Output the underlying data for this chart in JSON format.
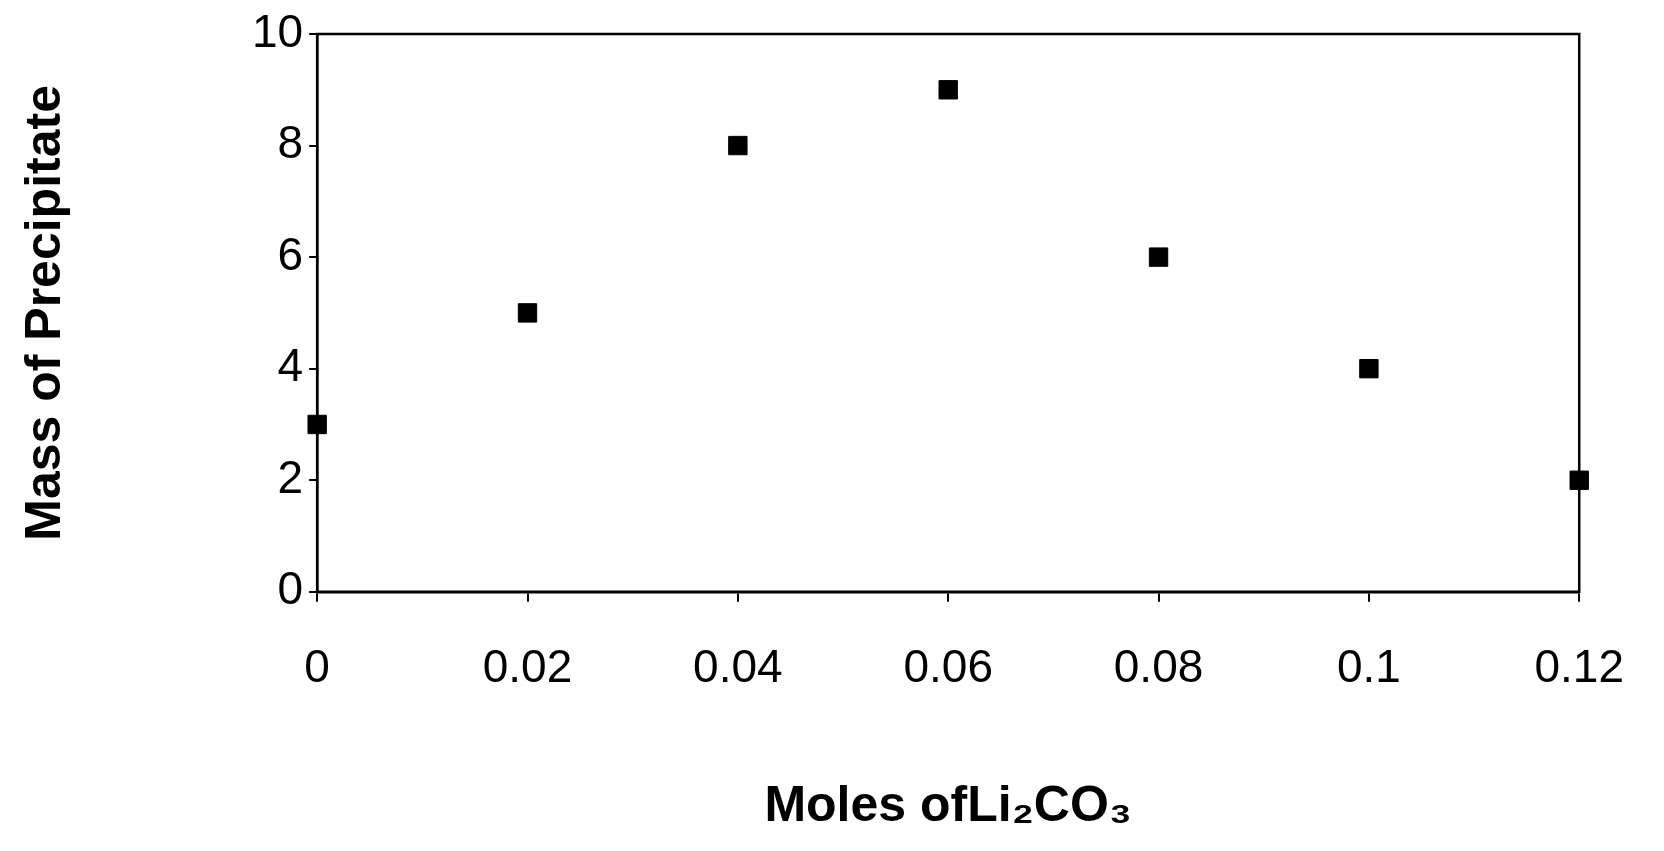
{
  "chart_data": {
    "type": "scatter",
    "xlabel": "Moles ofLi₂CO₃",
    "ylabel": "Mass of Precipitate",
    "x": [
      0,
      0.02,
      0.04,
      0.06,
      0.08,
      0.1,
      0.12
    ],
    "series": [
      {
        "color": "#000000",
        "values": [
          3,
          5,
          8,
          9,
          6,
          4,
          2
        ]
      }
    ],
    "xlim": [
      0,
      0.12
    ],
    "xticks": [
      0,
      0.02,
      0.04,
      0.06,
      0.08,
      0.1,
      0.12
    ],
    "ylim": [
      0,
      10
    ],
    "yticks": [
      0,
      2,
      4,
      6,
      8,
      10
    ],
    "marker": "square",
    "grid": false,
    "legend": false
  }
}
